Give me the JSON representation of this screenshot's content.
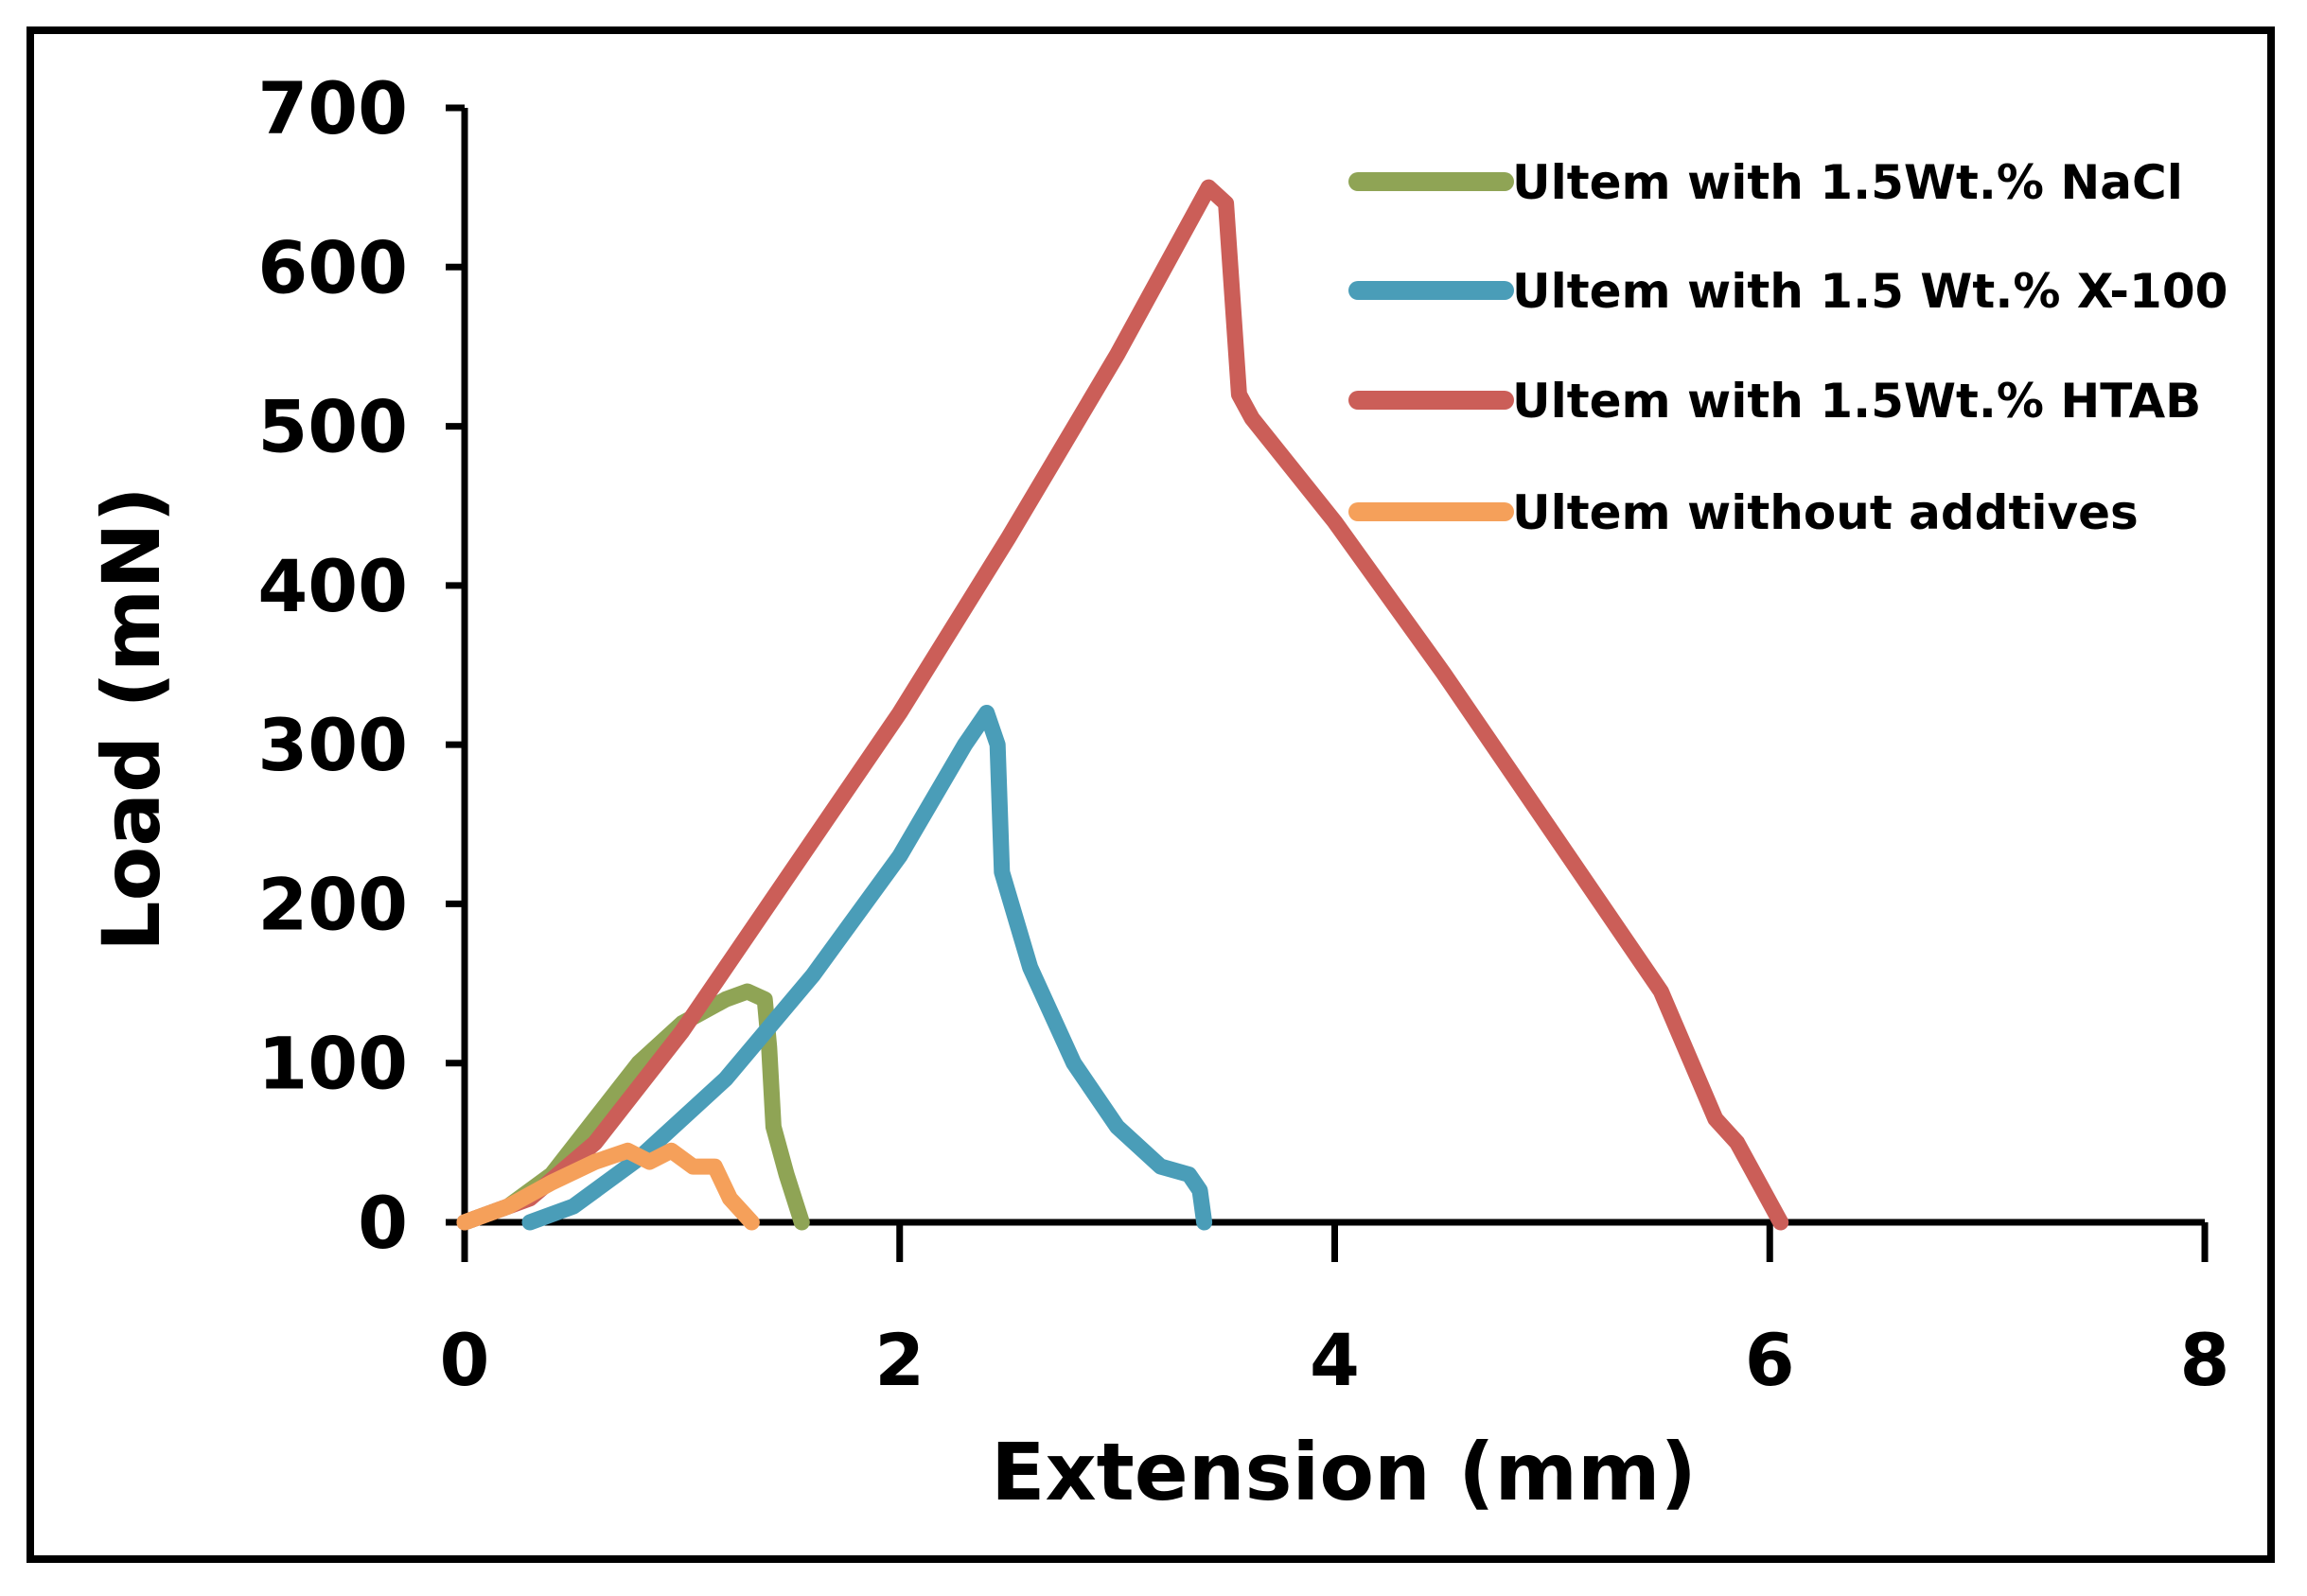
{
  "chart_data": {
    "type": "line",
    "title": "",
    "xlabel": "Extension (mm)",
    "ylabel": "Load (mN)",
    "xlim": [
      0,
      8
    ],
    "ylim": [
      0,
      700
    ],
    "xticks": [
      0,
      2,
      4,
      6,
      8
    ],
    "xtick_labels": [
      "0",
      "2",
      "4",
      "6",
      "8"
    ],
    "yticks": [
      0,
      100,
      200,
      300,
      400,
      500,
      600,
      700
    ],
    "ytick_labels": [
      "0",
      "100",
      "200",
      "300",
      "400",
      "500",
      "600",
      "700"
    ],
    "grid": false,
    "legend_position": "top-right",
    "series": [
      {
        "name": "Ultem with 1.5Wt.% NaCl",
        "color": "#8FA455",
        "points": [
          [
            0,
            0
          ],
          [
            0.2,
            10
          ],
          [
            0.4,
            30
          ],
          [
            0.6,
            65
          ],
          [
            0.8,
            100
          ],
          [
            1.0,
            125
          ],
          [
            1.2,
            140
          ],
          [
            1.3,
            145
          ],
          [
            1.38,
            140
          ],
          [
            1.4,
            110
          ],
          [
            1.42,
            60
          ],
          [
            1.48,
            30
          ],
          [
            1.55,
            0
          ]
        ]
      },
      {
        "name": "Ultem with 1.5 Wt.% X-100",
        "color": "#4A9DB8",
        "points": [
          [
            0.3,
            0
          ],
          [
            0.5,
            10
          ],
          [
            0.8,
            40
          ],
          [
            1.2,
            90
          ],
          [
            1.6,
            155
          ],
          [
            2.0,
            230
          ],
          [
            2.3,
            300
          ],
          [
            2.4,
            320
          ],
          [
            2.45,
            300
          ],
          [
            2.47,
            220
          ],
          [
            2.6,
            160
          ],
          [
            2.8,
            100
          ],
          [
            3.0,
            60
          ],
          [
            3.2,
            35
          ],
          [
            3.33,
            30
          ],
          [
            3.38,
            20
          ],
          [
            3.4,
            0
          ]
        ]
      },
      {
        "name": "Ultem with 1.5Wt.% HTAB",
        "color": "#CB5E58",
        "points": [
          [
            0,
            0
          ],
          [
            0.3,
            15
          ],
          [
            0.6,
            50
          ],
          [
            1.0,
            120
          ],
          [
            1.5,
            220
          ],
          [
            2.0,
            320
          ],
          [
            2.5,
            430
          ],
          [
            3.0,
            545
          ],
          [
            3.3,
            620
          ],
          [
            3.42,
            650
          ],
          [
            3.5,
            640
          ],
          [
            3.56,
            520
          ],
          [
            3.62,
            505
          ],
          [
            4.0,
            440
          ],
          [
            4.5,
            345
          ],
          [
            5.0,
            245
          ],
          [
            5.5,
            145
          ],
          [
            5.75,
            65
          ],
          [
            5.85,
            50
          ],
          [
            6.05,
            0
          ]
        ]
      },
      {
        "name": "Ultem without addtives",
        "color": "#F5A05A",
        "points": [
          [
            0,
            0
          ],
          [
            0.2,
            10
          ],
          [
            0.4,
            25
          ],
          [
            0.6,
            38
          ],
          [
            0.75,
            45
          ],
          [
            0.85,
            38
          ],
          [
            0.95,
            45
          ],
          [
            1.05,
            35
          ],
          [
            1.15,
            35
          ],
          [
            1.22,
            15
          ],
          [
            1.32,
            0
          ]
        ]
      }
    ]
  }
}
